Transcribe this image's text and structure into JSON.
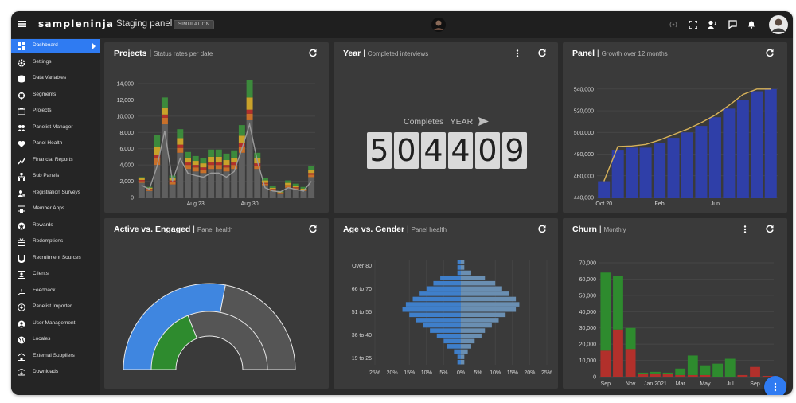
{
  "app": {
    "brand": "sampleninja",
    "panel_title": "Staging panel",
    "badge": "SIMULATION"
  },
  "colors": {
    "accent": "#2f7bf2",
    "bar_grey": "#606060",
    "blue_bar": "#2f3fa8",
    "green": "#2e8b2e",
    "red": "#b2302b",
    "pyr_male": "#3f7fca",
    "pyr_female": "#6a8fb2"
  },
  "topbar": {
    "icons": [
      "menu-icon",
      "broadcast-icon",
      "fullscreen-icon",
      "voice-icon",
      "chat-icon",
      "bell-icon",
      "user-avatar"
    ]
  },
  "sidebar": {
    "items": [
      {
        "label": "Dashboard",
        "icon": "dashboard-icon",
        "active": true
      },
      {
        "label": "Settings",
        "icon": "gear-icon"
      },
      {
        "label": "Data Variables",
        "icon": "database-icon"
      },
      {
        "label": "Segments",
        "icon": "target-icon"
      },
      {
        "label": "Projects",
        "icon": "projects-icon"
      },
      {
        "label": "Panelist Manager",
        "icon": "people-icon"
      },
      {
        "label": "Panel Health",
        "icon": "heart-pulse-icon"
      },
      {
        "label": "Financial Reports",
        "icon": "chart-icon"
      },
      {
        "label": "Sub Panels",
        "icon": "hierarchy-icon"
      },
      {
        "label": "Registration Surveys",
        "icon": "person-add-icon"
      },
      {
        "label": "Member Apps",
        "icon": "apps-icon"
      },
      {
        "label": "Rewards",
        "icon": "star-icon"
      },
      {
        "label": "Redemptions",
        "icon": "redeem-icon"
      },
      {
        "label": "Recruitment Sources",
        "icon": "magnet-icon"
      },
      {
        "label": "Clients",
        "icon": "contacts-icon"
      },
      {
        "label": "Feedback",
        "icon": "feedback-icon"
      },
      {
        "label": "Panelist Importer",
        "icon": "import-icon"
      },
      {
        "label": "User Management",
        "icon": "account-icon"
      },
      {
        "label": "Locales",
        "icon": "globe-icon"
      },
      {
        "label": "External Suppliers",
        "icon": "supplier-icon"
      },
      {
        "label": "Downloads",
        "icon": "download-icon"
      }
    ]
  },
  "cards": {
    "projects": {
      "title": "Projects",
      "subtitle": "Status rates per date"
    },
    "year": {
      "title": "Year",
      "subtitle": "Completed interviews",
      "completes_label": "Completes | YEAR",
      "digits": [
        "5",
        "0",
        "4",
        "4",
        "0",
        "9"
      ]
    },
    "panel": {
      "title": "Panel",
      "subtitle": "Growth over 12 months"
    },
    "active": {
      "title": "Active vs. Engaged",
      "subtitle": "Panel health"
    },
    "age": {
      "title": "Age vs. Gender",
      "subtitle": "Panel health"
    },
    "churn": {
      "title": "Churn",
      "subtitle": "Monthly"
    }
  },
  "chart_data": [
    {
      "id": "projects",
      "type": "bar",
      "stacked": true,
      "title": "Projects",
      "subtitle": "Status rates per date",
      "ylim": [
        0,
        14000
      ],
      "yticks": [
        "0",
        "2,000",
        "4,000",
        "6,000",
        "8,000",
        "10,000",
        "12,000",
        "14,000"
      ],
      "xtick_labels": [
        {
          "index": 7,
          "label": "Aug 23"
        },
        {
          "index": 14,
          "label": "Aug 30"
        }
      ],
      "series": [
        {
          "name": "base",
          "color": "#5f5f5f",
          "values": [
            1800,
            800,
            4000,
            9000,
            1600,
            5500,
            3500,
            3200,
            3000,
            3500,
            3500,
            3200,
            3500,
            5500,
            9500,
            3500,
            1500,
            800,
            400,
            1200,
            1000,
            800,
            2500
          ]
        },
        {
          "name": "orange",
          "color": "#c8702a",
          "values": [
            200,
            150,
            800,
            800,
            300,
            600,
            500,
            500,
            400,
            500,
            500,
            500,
            500,
            700,
            800,
            400,
            200,
            150,
            100,
            200,
            150,
            100,
            300
          ]
        },
        {
          "name": "red",
          "color": "#b2302b",
          "values": [
            150,
            100,
            400,
            400,
            200,
            400,
            300,
            300,
            300,
            300,
            300,
            300,
            300,
            500,
            500,
            300,
            100,
            100,
            50,
            100,
            100,
            50,
            200
          ]
        },
        {
          "name": "yellow",
          "color": "#c9a22a",
          "values": [
            200,
            150,
            1000,
            800,
            300,
            800,
            600,
            500,
            500,
            700,
            700,
            600,
            600,
            900,
            1500,
            600,
            300,
            150,
            100,
            300,
            200,
            150,
            400
          ]
        },
        {
          "name": "green",
          "color": "#3c8a3c",
          "values": [
            150,
            100,
            1500,
            1300,
            300,
            1100,
            700,
            600,
            600,
            900,
            900,
            800,
            900,
            1300,
            2100,
            700,
            300,
            200,
            150,
            300,
            250,
            200,
            500
          ]
        }
      ],
      "trend_line": [
        1500,
        1000,
        3800,
        8200,
        2000,
        4800,
        3000,
        2700,
        2500,
        3000,
        3000,
        2500,
        3200,
        6000,
        9000,
        4500,
        1200,
        800,
        700,
        1200,
        1000,
        800,
        2000
      ]
    },
    {
      "id": "panel",
      "type": "bar",
      "title": "Panel",
      "subtitle": "Growth over 12 months",
      "ylim": [
        440000,
        545000
      ],
      "yticks": [
        "440,000",
        "460,000",
        "480,000",
        "500,000",
        "520,000",
        "540,000"
      ],
      "xtick_labels": [
        {
          "index": 0,
          "label": "Oct 20"
        },
        {
          "index": 4,
          "label": "Feb"
        },
        {
          "index": 8,
          "label": "Jun"
        }
      ],
      "values": [
        455000,
        484000,
        486000,
        486000,
        490000,
        495000,
        500000,
        506000,
        514000,
        522000,
        530000,
        538000,
        540000
      ],
      "line": [
        455000,
        487000,
        487500,
        489000,
        493000,
        498000,
        503000,
        509000,
        516000,
        525000,
        535000,
        540000,
        540000
      ]
    },
    {
      "id": "active",
      "type": "pie",
      "title": "Active vs. Engaged",
      "subtitle": "Panel health",
      "outer": {
        "active_fraction": 0.56
      },
      "inner": {
        "engaged_fraction": 0.38
      }
    },
    {
      "id": "age",
      "type": "bar",
      "orientation": "horizontal",
      "title": "Age vs. Gender",
      "subtitle": "Panel health",
      "categories": [
        "Over 80",
        "66 to 70",
        "51 to 55",
        "36 to 40",
        "19 to 25"
      ],
      "xticks": [
        "25%",
        "20%",
        "15%",
        "10%",
        "5%",
        "0%",
        "5%",
        "10%",
        "15%",
        "20%",
        "25%"
      ],
      "male": [
        1,
        1,
        2,
        4,
        5,
        7,
        9,
        11,
        13,
        15,
        17,
        16,
        14,
        12,
        10,
        8,
        6,
        1,
        1,
        1
      ],
      "female": [
        1,
        1,
        2,
        3,
        4,
        6,
        7,
        9,
        11,
        13,
        16,
        17,
        16,
        14,
        12,
        10,
        7,
        3,
        1,
        1
      ]
    },
    {
      "id": "churn",
      "type": "bar",
      "stacked": true,
      "title": "Churn",
      "subtitle": "Monthly",
      "ylim": [
        0,
        70000
      ],
      "yticks": [
        "0",
        "10,000",
        "20,000",
        "30,000",
        "40,000",
        "50,000",
        "60,000",
        "70,000"
      ],
      "xtick_labels": [
        {
          "index": 0,
          "label": "Sep"
        },
        {
          "index": 2,
          "label": "Nov"
        },
        {
          "index": 4,
          "label": "Jan 2021"
        },
        {
          "index": 6,
          "label": "Mar"
        },
        {
          "index": 8,
          "label": "May"
        },
        {
          "index": 10,
          "label": "Jul"
        },
        {
          "index": 12,
          "label": "Sep"
        }
      ],
      "series": [
        {
          "name": "red",
          "color": "#b2302b",
          "values": [
            16000,
            29000,
            17000,
            1500,
            2000,
            1500,
            1000,
            1000,
            1000,
            0,
            0,
            1000,
            6000,
            500
          ]
        },
        {
          "name": "green",
          "color": "#2e8b2e",
          "values": [
            48000,
            33000,
            13000,
            1000,
            1000,
            1000,
            4000,
            12000,
            6000,
            8000,
            11000,
            0,
            0,
            0
          ]
        }
      ]
    }
  ]
}
